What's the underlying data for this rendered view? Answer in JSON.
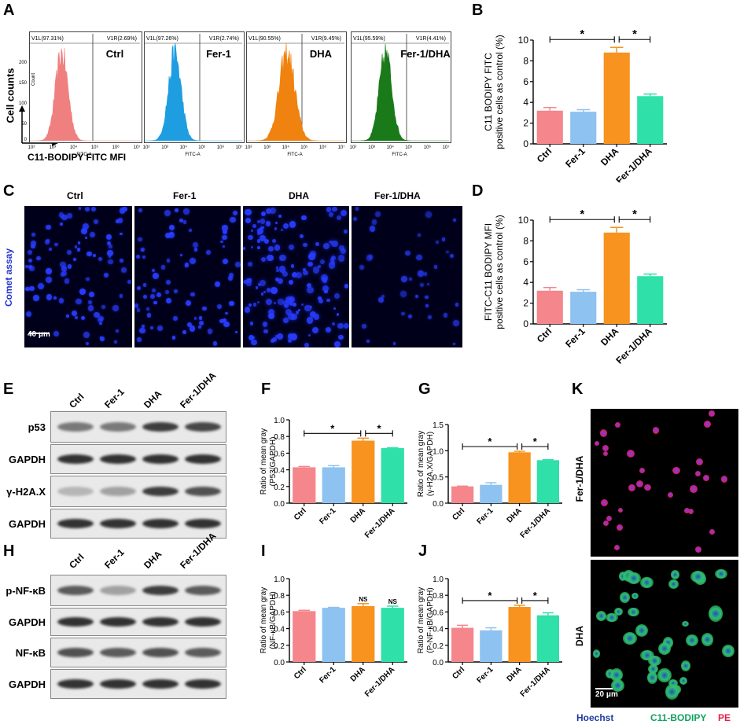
{
  "panels": {
    "A": "A",
    "B": "B",
    "C": "C",
    "D": "D",
    "E": "E",
    "F": "F",
    "G": "G",
    "H": "H",
    "I": "I",
    "J": "J",
    "K": "K"
  },
  "panel_a": {
    "y_axis_label": "Cell counts",
    "x_axis_label": "C11-BODIPY FITC MFI",
    "count_label": "Count",
    "fitc_label": "FITC-A",
    "tick_200": "200",
    "tick_150": "150",
    "tick_100": "100",
    "tick_50": "50",
    "tick_0": "0",
    "x_ticks": [
      "10²",
      "10³",
      "10⁴",
      "10⁵",
      "10⁶",
      "10⁷"
    ],
    "histograms": [
      {
        "label": "Ctrl",
        "v1l": "V1L(97.31%)",
        "v1r": "V1R(2.69%)",
        "color": "#f08080"
      },
      {
        "label": "Fer-1",
        "v1l": "V1L(97.26%)",
        "v1r": "V1R(2.74%)",
        "color": "#1e9de0"
      },
      {
        "label": "DHA",
        "v1l": "V1L(90.55%)",
        "v1r": "V1R(9.45%)",
        "color": "#f0820f"
      },
      {
        "label": "Fer-1/DHA",
        "v1l": "V1L(95.59%)",
        "v1r": "V1R(4.41%)",
        "color": "#1a7a1a"
      }
    ]
  },
  "panel_c": {
    "side_label": "Comet assay",
    "scale_bar": "40 μm",
    "conditions": [
      "Ctrl",
      "Fer-1",
      "DHA",
      "Fer-1/DHA"
    ]
  },
  "panel_e": {
    "lanes": [
      "Ctrl",
      "Fer-1",
      "DHA",
      "Fer-1/DHA"
    ],
    "rows": [
      "p53",
      "GAPDH",
      "γ-H2A.X",
      "GAPDH"
    ]
  },
  "panel_h": {
    "lanes": [
      "Ctrl",
      "Fer-1",
      "DHA",
      "Fer-1/DHA"
    ],
    "rows": [
      "p-NF-κB",
      "GAPDH",
      "NF-κB",
      "GAPDH"
    ]
  },
  "panel_k": {
    "top_label": "Fer-1/DHA",
    "bottom_label": "DHA",
    "scale_bar": "20 μm",
    "legend_hoechst": "Hoechst",
    "legend_bodipy": "C11-BODIPY",
    "legend_pe": "PE"
  },
  "significance": {
    "star": "*",
    "ns": "NS"
  },
  "chart_data": [
    {
      "panel": "B",
      "type": "bar",
      "categories": [
        "Ctrl",
        "Fer-1",
        "DHA",
        "Fer-1/DHA"
      ],
      "values": [
        3.2,
        3.1,
        8.8,
        4.6
      ],
      "errors": [
        0.3,
        0.2,
        0.5,
        0.2
      ],
      "colors": [
        "#f4868c",
        "#8ec2f0",
        "#f7931e",
        "#2fe0a8"
      ],
      "ylabel": "C11 BODIPY FITC\npositive cells as control (%)",
      "ylim": [
        0,
        10
      ],
      "yticks": [
        0,
        2,
        4,
        6,
        8,
        10
      ],
      "brackets": [
        {
          "from": 0,
          "to": 2,
          "label": "*"
        },
        {
          "from": 2,
          "to": 3,
          "label": "*"
        }
      ]
    },
    {
      "panel": "D",
      "type": "bar",
      "categories": [
        "Ctrl",
        "Fer-1",
        "DHA",
        "Fer-1/DHA"
      ],
      "values": [
        3.2,
        3.1,
        8.8,
        4.6
      ],
      "errors": [
        0.3,
        0.2,
        0.5,
        0.2
      ],
      "colors": [
        "#f4868c",
        "#8ec2f0",
        "#f7931e",
        "#2fe0a8"
      ],
      "ylabel": "FITC-C11 BODIPY MFI\npositive cells as control (%)",
      "ylim": [
        0,
        10
      ],
      "yticks": [
        0,
        2,
        4,
        6,
        8,
        10
      ],
      "brackets": [
        {
          "from": 0,
          "to": 2,
          "label": "*"
        },
        {
          "from": 2,
          "to": 3,
          "label": "*"
        }
      ]
    },
    {
      "panel": "F",
      "type": "bar",
      "categories": [
        "Ctrl",
        "Fer-1",
        "DHA",
        "Fer-1/DHA"
      ],
      "values": [
        0.43,
        0.43,
        0.75,
        0.66
      ],
      "errors": [
        0.01,
        0.02,
        0.03,
        0.005
      ],
      "colors": [
        "#f4868c",
        "#8ec2f0",
        "#f7931e",
        "#2fe0a8"
      ],
      "ylabel": "Ratio of mean gray\n(P53/GAPDH)",
      "ylim": [
        0,
        1.0
      ],
      "yticks": [
        0.0,
        0.2,
        0.4,
        0.6,
        0.8,
        1.0
      ],
      "ytick_labels": [
        "0.0",
        "0.2",
        "0.4",
        "0.6",
        "0.8",
        "1.0"
      ],
      "brackets": [
        {
          "from": 0,
          "to": 2,
          "label": "*"
        },
        {
          "from": 2,
          "to": 3,
          "label": "*"
        }
      ]
    },
    {
      "panel": "G",
      "type": "bar",
      "categories": [
        "Ctrl",
        "Fer-1",
        "DHA",
        "Fer-1/DHA"
      ],
      "values": [
        0.32,
        0.35,
        0.97,
        0.82
      ],
      "errors": [
        0.005,
        0.04,
        0.02,
        0.01
      ],
      "colors": [
        "#f4868c",
        "#8ec2f0",
        "#f7931e",
        "#2fe0a8"
      ],
      "ylabel": "Ratio of mean gray\n(γ-H2A.X/GAPDH)",
      "ylim": [
        0,
        1.5
      ],
      "yticks": [
        0.0,
        0.5,
        1.0,
        1.5
      ],
      "ytick_labels": [
        "0.0",
        "0.5",
        "1.0",
        "1.5"
      ],
      "brackets": [
        {
          "from": 0,
          "to": 2,
          "label": "*"
        },
        {
          "from": 2,
          "to": 3,
          "label": "*"
        }
      ]
    },
    {
      "panel": "I",
      "type": "bar",
      "categories": [
        "Ctrl",
        "Fer-1",
        "DHA",
        "Fer-1/DHA"
      ],
      "values": [
        0.61,
        0.65,
        0.67,
        0.65
      ],
      "errors": [
        0.01,
        0.005,
        0.03,
        0.02
      ],
      "colors": [
        "#f4868c",
        "#8ec2f0",
        "#f7931e",
        "#2fe0a8"
      ],
      "ylabel": "Ratio of mean gray\n(NF-κB/GAPDH)",
      "ylim": [
        0,
        1.0
      ],
      "yticks": [
        0.0,
        0.2,
        0.4,
        0.6,
        0.8,
        1.0
      ],
      "ytick_labels": [
        "0.0",
        "0.2",
        "0.4",
        "0.6",
        "0.8",
        "1.0"
      ],
      "annotations": [
        {
          "index": 2,
          "label": "NS"
        },
        {
          "index": 3,
          "label": "NS"
        }
      ]
    },
    {
      "panel": "J",
      "type": "bar",
      "categories": [
        "Ctrl",
        "Fer-1",
        "DHA",
        "Fer-1/DHA"
      ],
      "values": [
        0.41,
        0.38,
        0.66,
        0.56
      ],
      "errors": [
        0.03,
        0.03,
        0.02,
        0.03
      ],
      "colors": [
        "#f4868c",
        "#8ec2f0",
        "#f7931e",
        "#2fe0a8"
      ],
      "ylabel": "Ratio of mean gray\n(P-NF-κB/GAPDH)",
      "ylim": [
        0,
        1.0
      ],
      "yticks": [
        0.0,
        0.2,
        0.4,
        0.6,
        0.8,
        1.0
      ],
      "ytick_labels": [
        "0.0",
        "0.2",
        "0.4",
        "0.6",
        "0.8",
        "1.0"
      ],
      "brackets": [
        {
          "from": 0,
          "to": 2,
          "label": "*"
        },
        {
          "from": 2,
          "to": 3,
          "label": "*"
        }
      ]
    }
  ]
}
